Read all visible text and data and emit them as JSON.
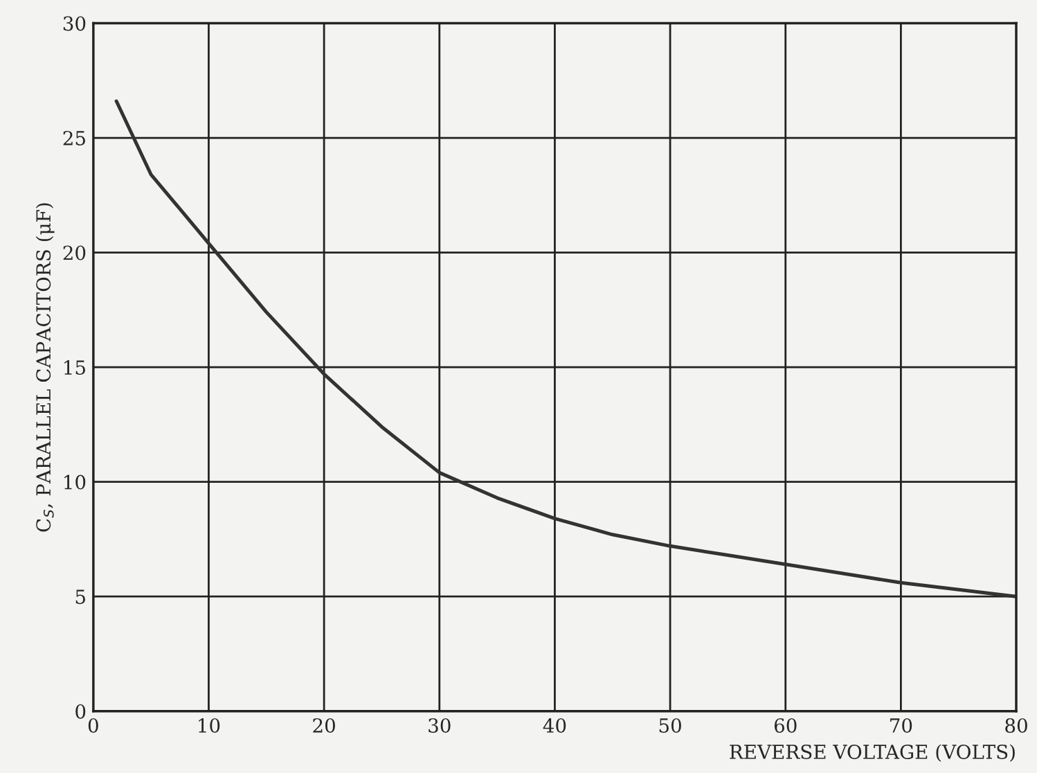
{
  "chart_data": {
    "type": "line",
    "xlabel": "REVERSE VOLTAGE (VOLTS)",
    "ylabel": "C$_{S}$, PARALLEL CAPACITORS (μF)",
    "x": [
      2,
      5,
      10,
      15,
      20,
      25,
      30,
      35,
      40,
      45,
      50,
      55,
      60,
      65,
      70,
      75,
      80
    ],
    "series": [
      {
        "color": "#333333",
        "values": [
          26.6,
          23.4,
          20.4,
          17.4,
          14.7,
          12.4,
          10.4,
          9.3,
          8.4,
          7.7,
          7.2,
          6.8,
          6.4,
          6.0,
          5.6,
          5.3,
          5.0
        ]
      }
    ],
    "xlim": [
      0,
      80
    ],
    "ylim": [
      0,
      30
    ],
    "xticks": [
      0,
      10,
      20,
      30,
      40,
      50,
      60,
      70,
      80
    ],
    "yticks": [
      0,
      5,
      10,
      15,
      20,
      25,
      30
    ],
    "grid": true,
    "legend": false,
    "marker": "none",
    "line_style": "solid"
  }
}
